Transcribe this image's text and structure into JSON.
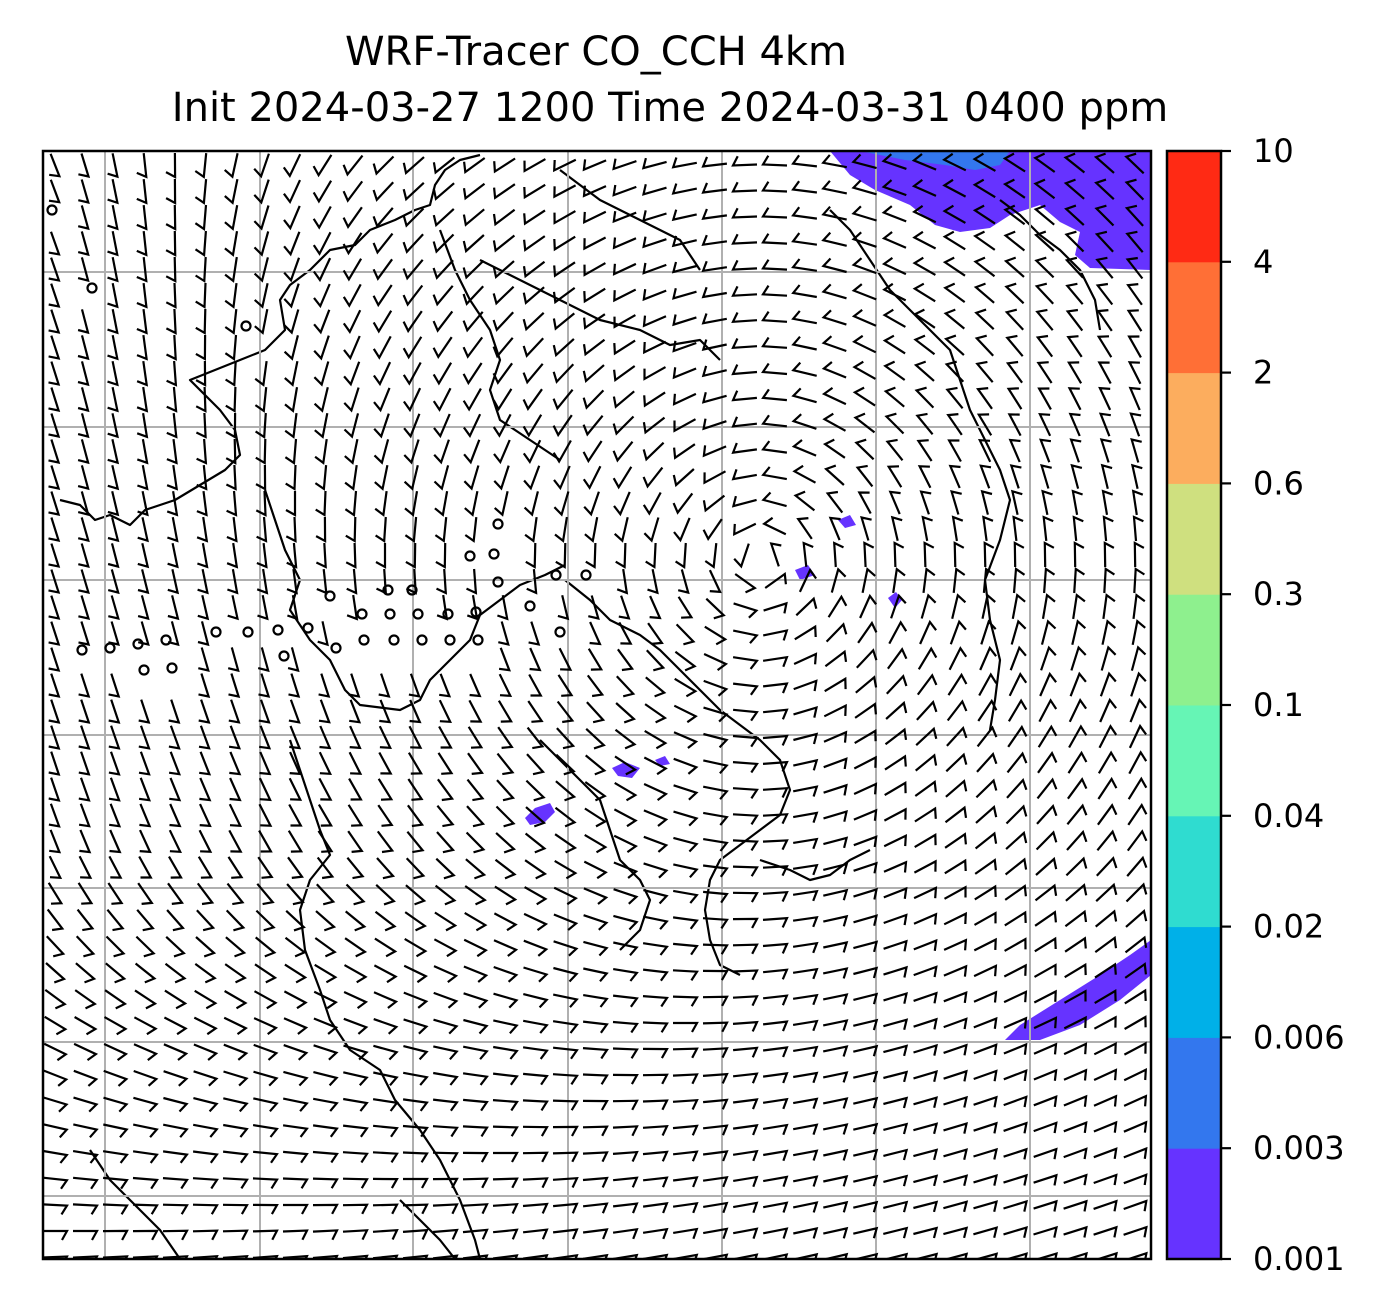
{
  "title": {
    "line1": "WRF-Tracer CO_CCH 4km",
    "line2": "Init 2024-03-27 1200 Time 2024-03-31 0400 ppm"
  },
  "colorbar": {
    "levels": [
      "0.001",
      "0.003",
      "0.006",
      "0.02",
      "0.04",
      "0.1",
      "0.3",
      "0.6",
      "2",
      "4",
      "10"
    ],
    "colors": [
      "#6633ff",
      "#3377ee",
      "#00b0e8",
      "#2fdcd0",
      "#66f5b5",
      "#8ef08e",
      "#cfe07f",
      "#fcad5e",
      "#ff6f36",
      "#ff2a14"
    ]
  },
  "map": {
    "grid": true,
    "gridline_color": "#b0b0b0",
    "coastline_color": "#000000",
    "tracer_color": "#6633ff",
    "wind_barbs": true
  }
}
